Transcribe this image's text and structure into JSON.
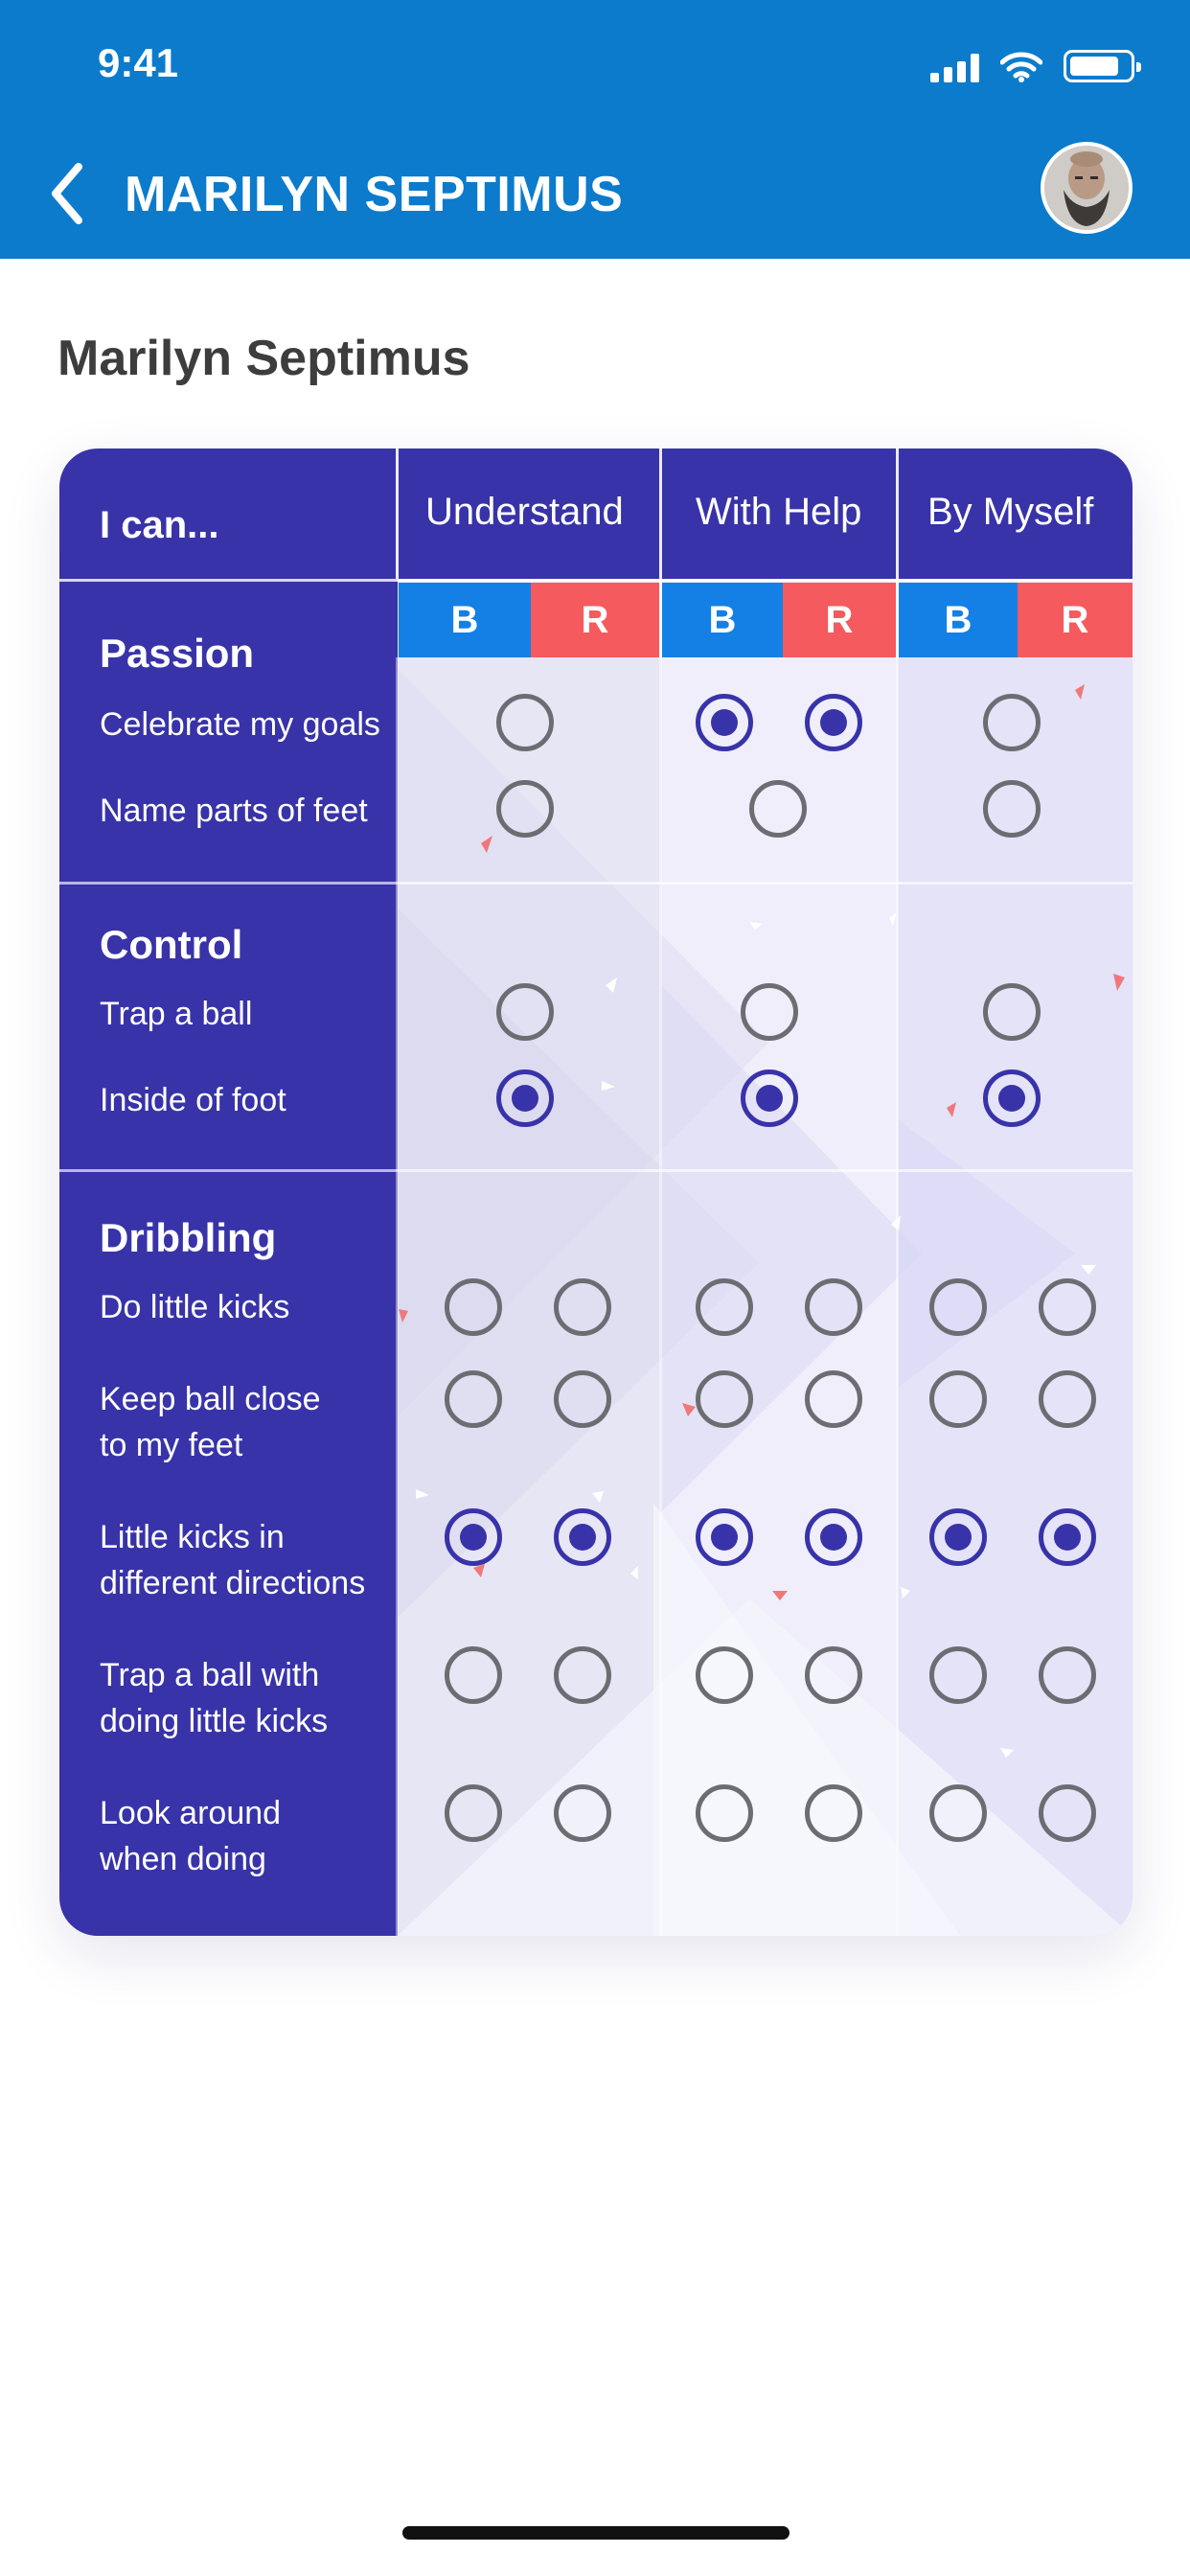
{
  "status_bar": {
    "time": "9:41"
  },
  "nav": {
    "title": "MARILYN SEPTIMUS"
  },
  "page": {
    "title": "Marilyn Septimus"
  },
  "table": {
    "row_header": "I can...",
    "columns": [
      "Understand",
      "With Help",
      "By Myself"
    ],
    "sub_labels": {
      "b": "B",
      "r": "R"
    },
    "colors": {
      "primary": "#3833a8",
      "blue": "#1480e6",
      "red": "#f55a5e",
      "header": "#0c7bcc"
    },
    "sections": [
      {
        "title": "Passion",
        "rows": [
          {
            "label": "Celebrate my goals",
            "understand": "off",
            "with_help": [
              "on",
              "on"
            ],
            "by_myself": "off"
          },
          {
            "label": "Name parts of feet",
            "understand": "off",
            "with_help": "off",
            "by_myself": "off"
          }
        ]
      },
      {
        "title": "Control",
        "rows": [
          {
            "label": "Trap a ball",
            "understand": "off",
            "with_help": "off",
            "by_myself": "off"
          },
          {
            "label": "Inside of foot",
            "understand": "on",
            "with_help": "on",
            "by_myself": "on"
          }
        ]
      },
      {
        "title": "Dribbling",
        "rows": [
          {
            "label": "Do little kicks",
            "values": [
              "off",
              "off",
              "off",
              "off",
              "off",
              "off"
            ]
          },
          {
            "label": "Keep ball close\nto my feet",
            "values": [
              "off",
              "off",
              "off",
              "off",
              "off",
              "off"
            ]
          },
          {
            "label": "Little kicks in\ndifferent directions",
            "values": [
              "on",
              "on",
              "on",
              "on",
              "on",
              "on"
            ]
          },
          {
            "label": "Trap a ball with\ndoing little kicks",
            "values": [
              "off",
              "off",
              "off",
              "off",
              "off",
              "off"
            ]
          },
          {
            "label": "Look around\nwhen doing",
            "values": [
              "off",
              "off",
              "off",
              "off",
              "off",
              "off"
            ]
          }
        ]
      }
    ]
  },
  "icons": [
    "back-chevron-icon",
    "signal-icon",
    "wifi-icon",
    "battery-icon",
    "avatar"
  ]
}
